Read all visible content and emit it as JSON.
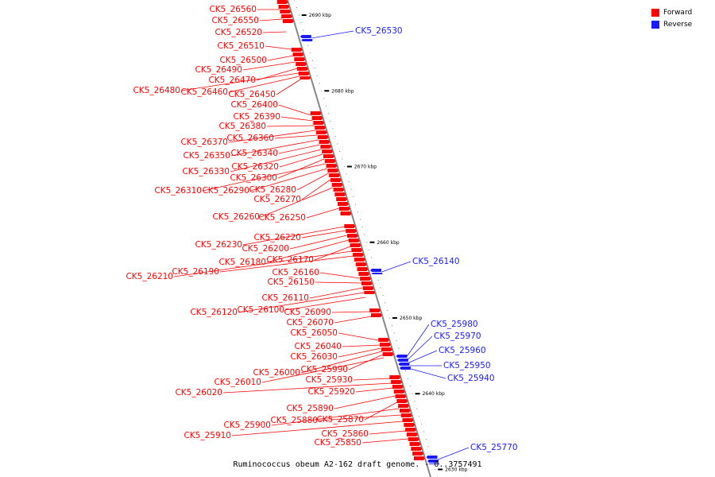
{
  "title": "Ruminococcus obeum A2-162 draft genome. - 0..3757491",
  "legend": [
    {
      "label": "Forward",
      "color": "#ff0000"
    },
    {
      "label": "Reverse",
      "color": "#1a1aff"
    }
  ],
  "colors": {
    "forward": "#ff0000",
    "reverse": "#1a1aff",
    "backbone": "#888888"
  },
  "scale": {
    "top_kbp": 2692,
    "bottom_kbp": 2629
  },
  "ticks": [
    "2690 kbp",
    "2680 kbp",
    "2670 kbp",
    "2660 kbp",
    "2650 kbp",
    "2640 kbp",
    "2630 kbp"
  ],
  "tick_kbp": [
    2690,
    2680,
    2670,
    2660,
    2650,
    2640,
    2630
  ],
  "forward_genes": [
    "CK5_26560",
    "CK5_26550",
    "CK5_26520",
    "CK5_26510",
    "CK5_26500",
    "CK5_26490",
    "CK5_26470",
    "CK5_26480",
    "CK5_26460",
    "CK5_26450",
    "CK5_26400",
    "CK5_26390",
    "CK5_26380",
    "CK5_26370",
    "CK5_26360",
    "CK5_26350",
    "CK5_26340",
    "CK5_26330",
    "CK5_26320",
    "CK5_26300",
    "CK5_26310",
    "CK5_26290",
    "CK5_26280",
    "CK5_26270",
    "CK5_26260",
    "CK5_26250",
    "CK5_26230",
    "CK5_26220",
    "CK5_26200",
    "CK5_26180",
    "CK5_26170",
    "CK5_26210",
    "CK5_26190",
    "CK5_26160",
    "CK5_26150",
    "CK5_26110",
    "CK5_26120",
    "CK5_26100",
    "CK5_26090",
    "CK5_26070",
    "CK5_26050",
    "CK5_26040",
    "CK5_26030",
    "CK5_26000",
    "CK5_25990",
    "CK5_26010",
    "CK5_25930",
    "CK5_26020",
    "CK5_25920",
    "CK5_25890",
    "CK5_25870",
    "CK5_25900",
    "CK5_25880",
    "CK5_25910",
    "CK5_25860",
    "CK5_25850"
  ],
  "reverse_genes": [
    "CK5_26530",
    "CK5_26140",
    "CK5_25980",
    "CK5_25970",
    "CK5_25960",
    "CK5_25950",
    "CK5_25940",
    "CK5_25770"
  ]
}
